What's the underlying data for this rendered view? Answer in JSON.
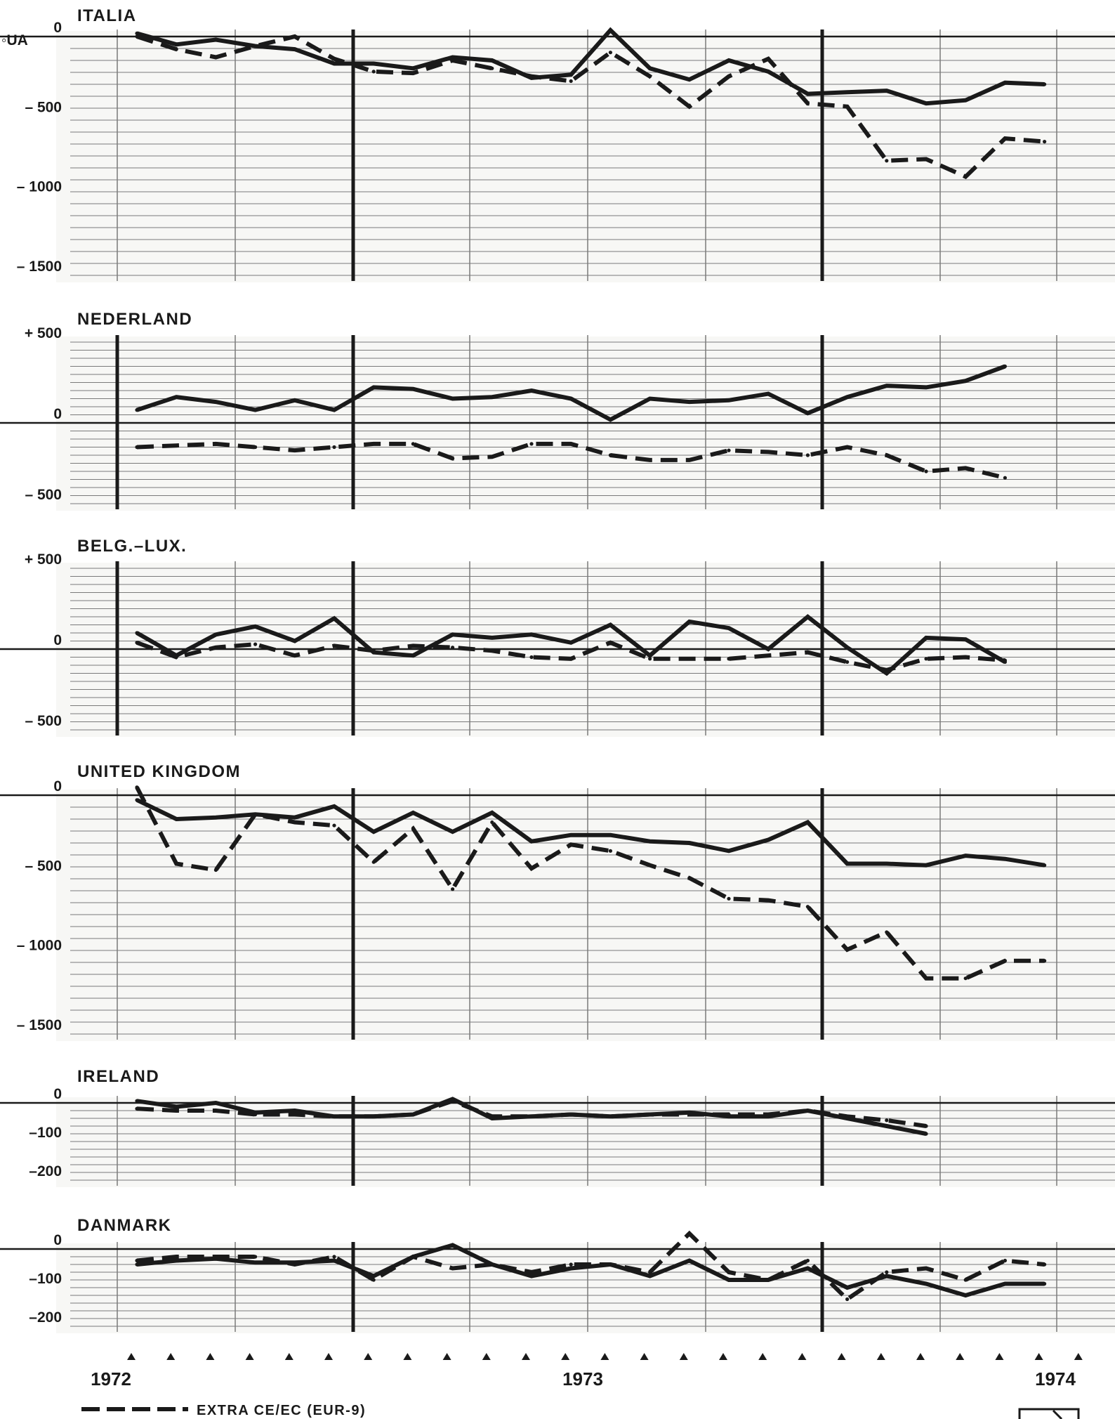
{
  "unit_label": "UA",
  "years": [
    "1972",
    "1973",
    "1974"
  ],
  "legend": {
    "dashed_label": "EXTRA CE/EC (EUR-9)"
  },
  "colors": {
    "ink": "#1a1a1a",
    "grid": "#7a7a7a",
    "paper": "#ffffff"
  },
  "chart_data": [
    {
      "type": "line",
      "title": "ITALIA",
      "ylim": [
        -1500,
        0
      ],
      "y_ticks": [
        0,
        -500,
        -1000,
        -1500
      ],
      "y_tick_labels": [
        "0",
        "– 500",
        "– 1000",
        "– 1500"
      ],
      "series": [
        {
          "style": "solid",
          "values": [
            20,
            -50,
            -20,
            -60,
            -80,
            -170,
            -170,
            -200,
            -130,
            -150,
            -260,
            -240,
            40,
            -200,
            -270,
            -150,
            -220,
            -360,
            -350,
            -340,
            -420,
            -400,
            -290,
            -300
          ]
        },
        {
          "style": "dashed",
          "values": [
            0,
            -80,
            -130,
            -60,
            0,
            -140,
            -220,
            -230,
            -150,
            -200,
            -250,
            -280,
            -100,
            -250,
            -440,
            -250,
            -140,
            -420,
            -440,
            -780,
            -770,
            -880,
            -640,
            -660
          ]
        }
      ]
    },
    {
      "type": "line",
      "title": "NEDERLAND",
      "ylim": [
        -500,
        500
      ],
      "y_ticks": [
        500,
        0,
        -500
      ],
      "y_tick_labels": [
        "+ 500",
        "0",
        "– 500"
      ],
      "series": [
        {
          "style": "solid",
          "values": [
            80,
            160,
            130,
            80,
            140,
            80,
            220,
            210,
            150,
            160,
            200,
            150,
            20,
            150,
            130,
            140,
            180,
            60,
            160,
            230,
            220,
            260,
            350
          ]
        },
        {
          "style": "dashed",
          "values": [
            -150,
            -140,
            -130,
            -150,
            -170,
            -150,
            -130,
            -130,
            -220,
            -210,
            -130,
            -130,
            -200,
            -230,
            -230,
            -170,
            -180,
            -200,
            -150,
            -200,
            -300,
            -280,
            -340
          ]
        }
      ]
    },
    {
      "type": "line",
      "title": "BELG.–LUX.",
      "ylim": [
        -500,
        500
      ],
      "y_ticks": [
        500,
        0,
        -500
      ],
      "y_tick_labels": [
        "+ 500",
        "0",
        "– 500"
      ],
      "series": [
        {
          "style": "solid",
          "values": [
            100,
            -40,
            90,
            140,
            50,
            190,
            -20,
            -40,
            90,
            70,
            90,
            40,
            150,
            -40,
            170,
            130,
            0,
            200,
            10,
            -150,
            70,
            60,
            -80
          ]
        },
        {
          "style": "dashed",
          "values": [
            40,
            -50,
            10,
            30,
            -40,
            20,
            -10,
            20,
            10,
            -10,
            -50,
            -60,
            40,
            -60,
            -60,
            -60,
            -40,
            -20,
            -80,
            -130,
            -60,
            -50,
            -70
          ]
        }
      ]
    },
    {
      "type": "line",
      "title": "UNITED KINGDOM",
      "ylim": [
        -1500,
        0
      ],
      "y_ticks": [
        0,
        -500,
        -1000,
        -1500
      ],
      "y_tick_labels": [
        "0",
        "– 500",
        "– 1000",
        "– 1500"
      ],
      "series": [
        {
          "style": "solid",
          "values": [
            -30,
            -150,
            -140,
            -120,
            -140,
            -70,
            -230,
            -110,
            -230,
            -110,
            -290,
            -250,
            -250,
            -290,
            -300,
            -350,
            -280,
            -170,
            -430,
            -430,
            -440,
            -380,
            -400,
            -440
          ]
        },
        {
          "style": "dashed",
          "values": [
            50,
            -430,
            -470,
            -120,
            -170,
            -190,
            -420,
            -210,
            -590,
            -170,
            -460,
            -310,
            -350,
            -440,
            -520,
            -650,
            -660,
            -700,
            -970,
            -860,
            -1150,
            -1150,
            -1040,
            -1040
          ]
        }
      ]
    },
    {
      "type": "line",
      "title": "IRELAND",
      "ylim": [
        -200,
        0
      ],
      "y_ticks": [
        0,
        -100,
        -200
      ],
      "y_tick_labels": [
        "0",
        "–100",
        "–200"
      ],
      "series": [
        {
          "style": "solid",
          "values": [
            5,
            -10,
            0,
            -25,
            -20,
            -35,
            -35,
            -30,
            10,
            -40,
            -35,
            -30,
            -35,
            -30,
            -25,
            -35,
            -35,
            -20,
            -40,
            -60,
            -80
          ]
        },
        {
          "style": "dashed",
          "values": [
            -15,
            -20,
            -20,
            -30,
            -30,
            -35,
            -35,
            -30,
            5,
            -35,
            -35,
            -30,
            -35,
            -30,
            -30,
            -30,
            -30,
            -20,
            -35,
            -45,
            -60
          ]
        }
      ]
    },
    {
      "type": "line",
      "title": "DANMARK",
      "ylim": [
        -200,
        0
      ],
      "y_ticks": [
        0,
        -100,
        -200
      ],
      "y_tick_labels": [
        "0",
        "–100",
        "–200"
      ],
      "series": [
        {
          "style": "solid",
          "values": [
            -40,
            -30,
            -25,
            -35,
            -35,
            -30,
            -70,
            -20,
            10,
            -40,
            -70,
            -50,
            -40,
            -70,
            -30,
            -80,
            -80,
            -50,
            -100,
            -70,
            -90,
            -120,
            -90,
            -90
          ]
        },
        {
          "style": "dashed",
          "values": [
            -30,
            -20,
            -20,
            -20,
            -40,
            -20,
            -80,
            -20,
            -50,
            -40,
            -60,
            -40,
            -40,
            -60,
            40,
            -60,
            -80,
            -30,
            -130,
            -60,
            -50,
            -80,
            -30,
            -40
          ]
        }
      ]
    }
  ]
}
